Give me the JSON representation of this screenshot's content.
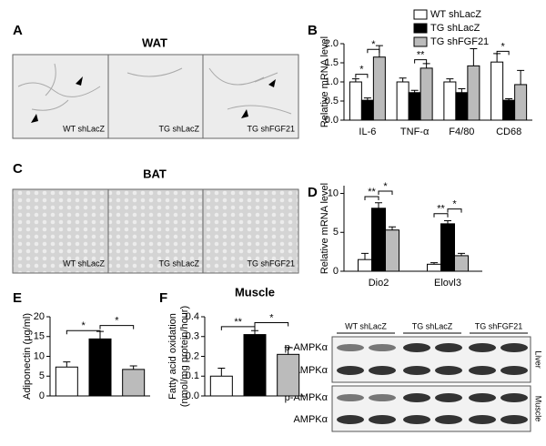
{
  "panel_labels": [
    "A",
    "B",
    "C",
    "D",
    "E",
    "F"
  ],
  "wat": {
    "title": "WAT",
    "images": [
      "WT shLacZ",
      "TG shLacZ",
      "TG shFGF21"
    ]
  },
  "bat": {
    "title": "BAT",
    "images": [
      "WT shLacZ",
      "TG shLacZ",
      "TG shFGF21"
    ]
  },
  "western_blot": {
    "columns": [
      "WT shLacZ",
      "TG shLacZ",
      "TG shFGF21"
    ],
    "rows": [
      "p-AMPKα",
      "AMPKα",
      "p-AMPKα",
      "AMPKα"
    ],
    "tissues": [
      "Liver",
      "Muscle"
    ]
  },
  "chart_data": [
    {
      "type": "bar",
      "y_label": [
        "Relative mRNA level"
      ],
      "categories": [
        "IL-6",
        "TNF-α",
        "F4/80",
        "CD68"
      ],
      "series": [
        {
          "name": "WT shLacZ",
          "color": "#ffffff",
          "values": [
            1.0,
            1.0,
            1.0,
            1.52
          ],
          "errors": [
            0.08,
            0.1,
            0.08,
            0.22
          ]
        },
        {
          "name": "TG shLacZ",
          "color": "#000000",
          "values": [
            0.52,
            0.72,
            0.72,
            0.52
          ],
          "errors": [
            0.06,
            0.06,
            0.1,
            0.04
          ]
        },
        {
          "name": "TG shFGF21",
          "color": "#bbbbbb",
          "values": [
            1.65,
            1.36,
            1.42,
            0.93
          ],
          "errors": [
            0.3,
            0.12,
            0.45,
            0.37
          ]
        }
      ],
      "ylim": [
        0,
        2
      ],
      "yticks": [
        {
          "value": 0,
          "label": "0.0"
        },
        0.5,
        {
          "value": 1,
          "label": "1.0"
        },
        1.5,
        {
          "value": 2,
          "label": "2.0"
        }
      ],
      "annotations": [
        "*",
        "*",
        "**",
        "*"
      ],
      "legend": "top-right"
    },
    {
      "type": "bar",
      "y_label": [
        "Relative mRNA level"
      ],
      "categories": [
        "Dio2",
        "Elovl3"
      ],
      "series": [
        {
          "name": "WT shLacZ",
          "color": "#ffffff",
          "values": [
            1.5,
            0.9
          ],
          "errors": [
            0.8,
            0.2
          ]
        },
        {
          "name": "TG shLacZ",
          "color": "#000000",
          "values": [
            8.1,
            6.1
          ],
          "errors": [
            0.7,
            0.4
          ]
        },
        {
          "name": "TG shFGF21",
          "color": "#bbbbbb",
          "values": [
            5.3,
            2.0
          ],
          "errors": [
            0.4,
            0.3
          ]
        }
      ],
      "ylim": [
        0,
        11
      ],
      "yticks": [
        0,
        5,
        10
      ],
      "annotations": [
        "**",
        "*",
        "**",
        "*"
      ]
    },
    {
      "type": "bar",
      "y_label": [
        "Adiponectin (μg/ml)"
      ],
      "categories": [
        null,
        null,
        null
      ],
      "values": [
        7.3,
        14.4,
        6.7
      ],
      "errors": [
        1.3,
        1.9,
        0.9
      ],
      "colors": [
        "#ffffff",
        "#000000",
        "#bbbbbb"
      ],
      "ylim": [
        0,
        20
      ],
      "yticks": [
        0,
        5,
        10,
        15,
        20
      ],
      "annotations": [
        "*",
        "*"
      ]
    },
    {
      "type": "bar",
      "title": "Muscle",
      "y_label": [
        "Fatty acid oxidation",
        "(nmol/mg protein/hour)"
      ],
      "categories": [
        null,
        null,
        null
      ],
      "values": [
        0.1,
        0.31,
        0.21
      ],
      "errors": [
        0.04,
        0.02,
        0.035
      ],
      "colors": [
        "#ffffff",
        "#000000",
        "#bbbbbb"
      ],
      "ylim": [
        0,
        0.4
      ],
      "yticks": [
        {
          "value": 0,
          "label": "0.0"
        },
        0.1,
        0.2,
        0.3,
        0.4
      ],
      "annotations": [
        "**",
        "*"
      ]
    }
  ]
}
